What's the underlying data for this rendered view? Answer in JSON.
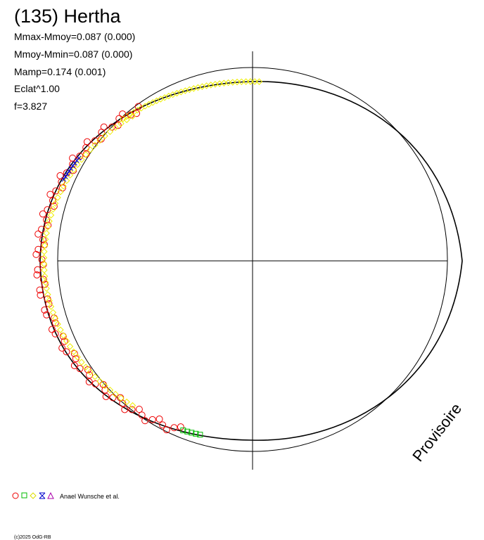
{
  "header": {
    "title": "(135) Hertha"
  },
  "stats": [
    "Mmax-Mmoy=0.087 (0.000)",
    "Mmoy-Mmin=0.087 (0.000)",
    "Mamp=0.174 (0.001)",
    "Eclat^1.00",
    "f=3.827"
  ],
  "watermark": "Provisoire",
  "legend": {
    "label": "Anael Wunsche et al."
  },
  "footer": "(c)2025 OdG-RB"
}
